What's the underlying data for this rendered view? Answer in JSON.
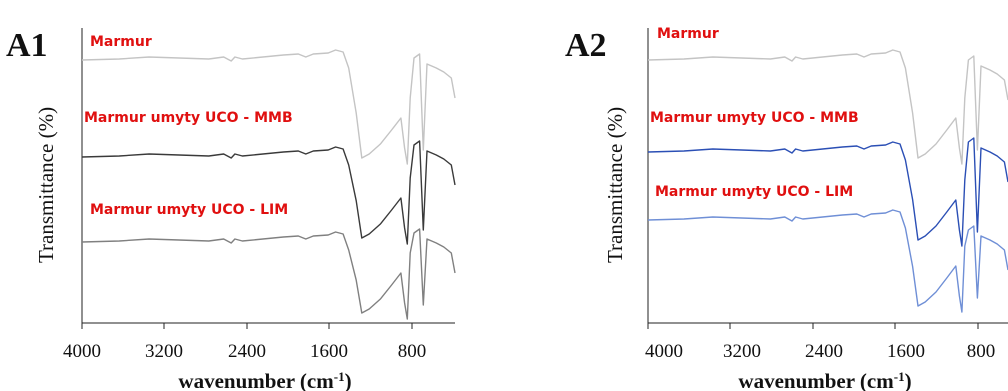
{
  "chart_data": [
    {
      "type": "line",
      "panel_label": "A1",
      "xlabel": "wavenumber (cm",
      "xlabel_sup": "-1",
      "xlabel_close": ")",
      "ylabel": "Transmittance (%)",
      "xlim": [
        4000,
        650
      ],
      "x_reversed": true,
      "y_ticks_shown": false,
      "x_ticks": [
        "4000",
        "3200",
        "2400",
        "1600",
        "800"
      ],
      "x_tick_values": [
        4000,
        3200,
        2400,
        1600,
        800
      ],
      "series": [
        {
          "name": "Marmur",
          "color": "#c4c4c4"
        },
        {
          "name": "Marmur umyty UCO - MMB",
          "color": "#3a3a3a"
        },
        {
          "name": "Marmur umyty UCO - LIM",
          "color": "#808080"
        }
      ]
    },
    {
      "type": "line",
      "panel_label": "A2",
      "xlabel": "wavenumber (cm",
      "xlabel_sup": "-1",
      "xlabel_close": ")",
      "ylabel": "Transmittance (%)",
      "xlim": [
        4000,
        650
      ],
      "x_reversed": true,
      "y_ticks_shown": false,
      "x_ticks": [
        "4000",
        "3200",
        "2400",
        "1600",
        "800"
      ],
      "x_tick_values": [
        4000,
        3200,
        2400,
        1600,
        800
      ],
      "series": [
        {
          "name": "Marmur",
          "color": "#c4c4c4"
        },
        {
          "name": "Marmur umyty UCO - MMB",
          "color": "#2b4fb5"
        },
        {
          "name": "Marmur umyty UCO - LIM",
          "color": "#6f8fd6"
        }
      ]
    }
  ]
}
